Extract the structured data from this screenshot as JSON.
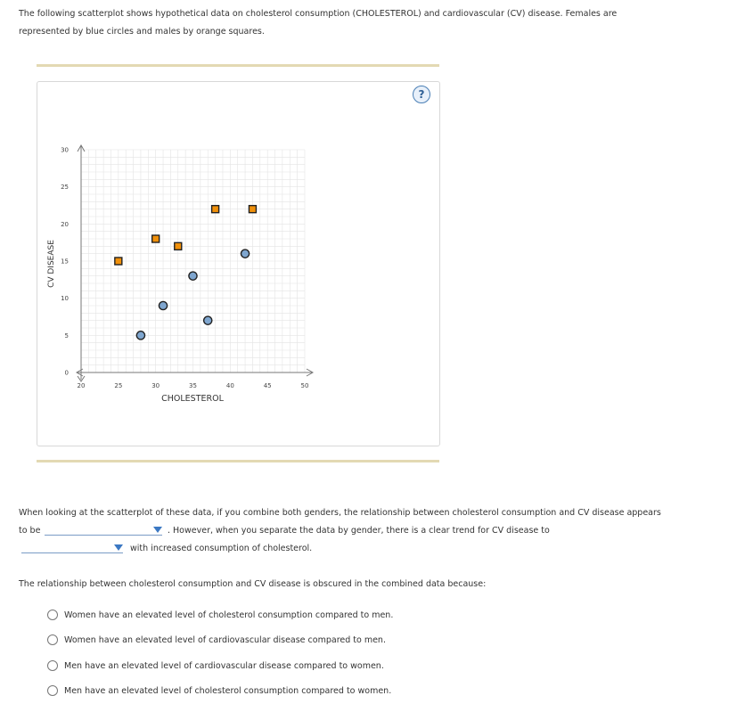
{
  "intro": {
    "line1": "The following scatterplot shows hypothetical data on cholesterol consumption (CHOLESTEROL) and cardiovascular (CV) disease. Females are",
    "line2": "represented by blue circles and males by orange squares."
  },
  "help_label": "?",
  "colors": {
    "female": "#7fa6cf",
    "male": "#f0900a",
    "rule": "#e3d9b3",
    "grid": "#e4e4e4"
  },
  "chart_data": {
    "type": "scatter",
    "xlabel": "CHOLESTEROL",
    "ylabel": "CV DISEASE",
    "xlim": [
      20,
      50
    ],
    "ylim": [
      0,
      30
    ],
    "xticks": [
      20,
      25,
      30,
      35,
      40,
      45,
      50
    ],
    "yticks": [
      0,
      5,
      10,
      15,
      20,
      25,
      30
    ],
    "grid": true,
    "series": [
      {
        "marker": "circle",
        "color": "#7fa6cf",
        "x": [
          28,
          31,
          35,
          37,
          42
        ],
        "y": [
          5,
          9,
          13,
          7,
          16
        ]
      },
      {
        "marker": "square",
        "color": "#f0900a",
        "x": [
          25,
          30,
          33,
          38,
          43
        ],
        "y": [
          15,
          18,
          17,
          22,
          22
        ]
      }
    ]
  },
  "paragraph": {
    "line1": "When looking at the scatterplot of these data, if you combine both genders, the relationship between cholesterol consumption and CV disease appears",
    "to_be": "to be",
    "line2_rest": ". However, when you separate the data by gender, there is a clear trend for CV disease to",
    "line3_rest": "with increased consumption of cholesterol.",
    "select1_value": "",
    "select2_value": ""
  },
  "question": "The relationship between cholesterol consumption and CV disease is obscured in the combined data because:",
  "options": [
    "Women have an elevated level of cholesterol consumption compared to men.",
    "Women have an elevated level of cardiovascular disease compared to men.",
    "Men have an elevated level of cardiovascular disease compared to women.",
    "Men have an elevated level of cholesterol consumption compared to women."
  ]
}
